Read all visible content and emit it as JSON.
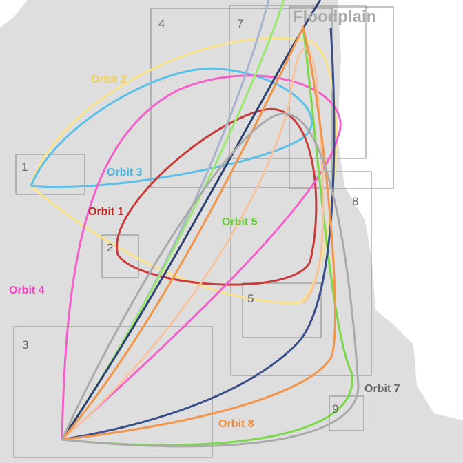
{
  "title": "Floodplain",
  "boxes": [
    {
      "label": "1"
    },
    {
      "label": "2"
    },
    {
      "label": "3"
    },
    {
      "label": "4"
    },
    {
      "label": "5"
    },
    {
      "label": "7"
    },
    {
      "label": "8"
    },
    {
      "label": "9"
    }
  ],
  "orbits": [
    {
      "label": "Orbit 1"
    },
    {
      "label": "Orbit 2"
    },
    {
      "label": "Orbit 3"
    },
    {
      "label": "Orbit 4"
    },
    {
      "label": "Orbit 5"
    },
    {
      "label": "Orbit 7"
    },
    {
      "label": "Orbit 8"
    }
  ]
}
